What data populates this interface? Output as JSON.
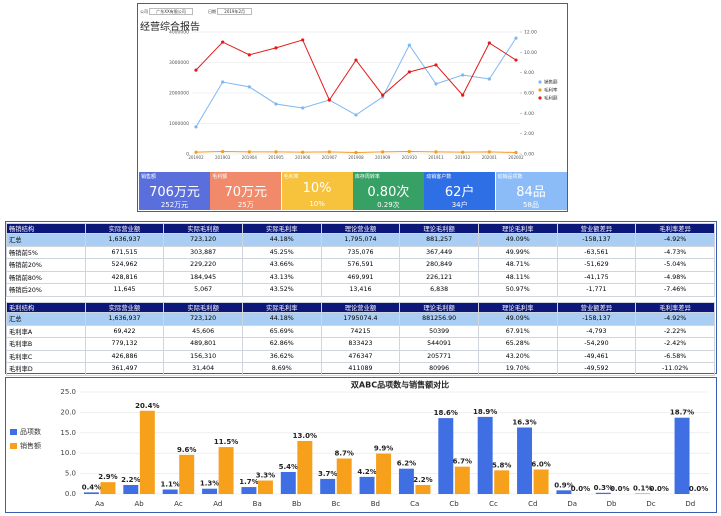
{
  "filters": {
    "company_label": "公司",
    "company": "广东XX有限公司",
    "date_label": "日期",
    "date": "2019年2月"
  },
  "report_title": "经营综合报告",
  "chart_data": [
    {
      "type": "line",
      "categories": [
        "201902",
        "201903",
        "201904",
        "201905",
        "201906",
        "201907",
        "201908",
        "201909",
        "201910",
        "201911",
        "201912",
        "202001",
        "202002"
      ],
      "series": [
        {
          "name": "销售额",
          "color": "#7fb8f0",
          "values": [
            890000,
            2360000,
            2200000,
            1640000,
            1510000,
            1770000,
            1280000,
            1870000,
            3570000,
            2300000,
            2590000,
            2460000,
            3800000
          ]
        },
        {
          "name": "毛利率",
          "color": "#f39a1e",
          "values": [
            60000,
            80000,
            70000,
            70000,
            60000,
            70000,
            50000,
            70000,
            80000,
            70000,
            60000,
            70000,
            50000
          ]
        },
        {
          "name": "毛利额",
          "color": "#e41a1a",
          "values": [
            2750000,
            3670000,
            3250000,
            3480000,
            3740000,
            1770000,
            3080000,
            1930000,
            2690000,
            2920000,
            1930000,
            3640000,
            3080000
          ]
        }
      ],
      "ylim": [
        0,
        4000000
      ],
      "yticks": [
        0,
        1000000,
        2000000,
        3000000,
        4000000
      ],
      "y2lim": [
        0,
        12
      ],
      "y2ticks": [
        {
          "value": 0,
          "label": "0.00"
        },
        {
          "value": 2,
          "label": "2.00"
        },
        {
          "value": 4,
          "label": "4.00"
        },
        {
          "value": 6,
          "label": "6.00"
        },
        {
          "value": 8,
          "label": "8.00"
        },
        {
          "value": 10,
          "label": "10.00"
        },
        {
          "value": 12,
          "label": "12.00"
        }
      ],
      "grid": true,
      "legend": "right"
    },
    {
      "type": "bar",
      "title": "双ABC品项数与销售额对比",
      "categories": [
        "Aa",
        "Ab",
        "Ac",
        "Ad",
        "Ba",
        "Bb",
        "Bc",
        "Bd",
        "Ca",
        "Cb",
        "Cc",
        "Cd",
        "Da",
        "Db",
        "Dc",
        "Dd"
      ],
      "series": [
        {
          "name": "品项数",
          "color": "#3f6fe3",
          "values": [
            0.4,
            2.2,
            1.1,
            1.3,
            1.7,
            5.4,
            3.7,
            4.2,
            6.2,
            18.6,
            18.9,
            16.3,
            0.9,
            0.3,
            0.1,
            18.7
          ],
          "value_labels": [
            "0.4%",
            "2.2%",
            "1.1%",
            "1.3%",
            "1.7%",
            "5.4%",
            "3.7%",
            "4.2%",
            "6.2%",
            "18.6%",
            "18.9%",
            "16.3%",
            "0.9%",
            "0.3%",
            "0.1%",
            "18.7%"
          ]
        },
        {
          "name": "销售额",
          "color": "#f6a01b",
          "values": [
            2.9,
            20.4,
            9.6,
            11.5,
            3.3,
            13.0,
            8.7,
            9.9,
            2.2,
            6.7,
            5.8,
            6.0,
            0.0,
            0.0,
            0.0,
            0.0
          ],
          "value_labels": [
            "2.9%",
            "20.4%",
            "9.6%",
            "11.5%",
            "3.3%",
            "13.0%",
            "8.7%",
            "9.9%",
            "2.2%",
            "6.7%",
            "5.8%",
            "6.0%",
            "0.0%",
            "0.0%",
            "0.0%",
            "0.0%"
          ]
        }
      ],
      "ylim": [
        0,
        25
      ],
      "yticks": [
        {
          "value": 0,
          "label": "0.0"
        },
        {
          "value": 5,
          "label": "5.0"
        },
        {
          "value": 10,
          "label": "10.0"
        },
        {
          "value": 15,
          "label": "15.0"
        },
        {
          "value": 20,
          "label": "20.0"
        },
        {
          "value": 25,
          "label": "25.0"
        }
      ],
      "grid": true,
      "legend": "left"
    }
  ],
  "kpis": [
    {
      "label": "销售额",
      "value": "706万元",
      "sub": "252万元",
      "color": "#5b6fdc"
    },
    {
      "label": "毛利额",
      "value": "70万元",
      "sub": "25万",
      "color": "#f08a6a"
    },
    {
      "label": "毛利率",
      "value": "10%",
      "sub": "10%",
      "color": "#f7c23c"
    },
    {
      "label": "库存周转率",
      "value": "0.80次",
      "sub": "0.29次",
      "color": "#36a065"
    },
    {
      "label": "动销客户数",
      "value": "62户",
      "sub": "34户",
      "color": "#2f6fe6"
    },
    {
      "label": "动销品项数",
      "value": "84品",
      "sub": "58品",
      "color": "#8cbcf8"
    }
  ],
  "tables": [
    {
      "header": [
        "畅销结构",
        "实际营业额",
        "实际毛利额",
        "实际毛利率",
        "理论营业额",
        "理论毛利额",
        "理论毛利率",
        "营业额差异",
        "毛利率差异"
      ],
      "rows": [
        [
          "汇总",
          "1,636,937",
          "723,120",
          "44.18%",
          "1,795,074",
          "881,257",
          "49.09%",
          "-158,137",
          "-4.92%"
        ],
        [
          "畅销前5%",
          "671,515",
          "303,887",
          "45.25%",
          "735,076",
          "367,449",
          "49.99%",
          "-63,561",
          "-4.73%"
        ],
        [
          "畅销前20%",
          "524,962",
          "229,220",
          "43.66%",
          "576,591",
          "280,849",
          "48.71%",
          "-51,629",
          "-5.04%"
        ],
        [
          "畅销前80%",
          "428,816",
          "184,945",
          "43.13%",
          "469,991",
          "226,121",
          "48.11%",
          "-41,175",
          "-4.98%"
        ],
        [
          "畅销后20%",
          "11,645",
          "5,067",
          "43.52%",
          "13,416",
          "6,838",
          "50.97%",
          "-1,771",
          "-7.46%"
        ]
      ]
    },
    {
      "header": [
        "毛利结构",
        "实际营业额",
        "实际毛利额",
        "实际毛利率",
        "理论营业额",
        "理论毛利额",
        "理论毛利率",
        "营业额差异",
        "毛利率差异"
      ],
      "rows": [
        [
          "汇总",
          "1,636,937",
          "723,120",
          "44.18%",
          "1795074.4",
          "881256.90",
          "49.09%",
          "-158,137",
          "-4.92%"
        ],
        [
          "毛利率A",
          "69,422",
          "45,606",
          "65.69%",
          "74215",
          "50399",
          "67.91%",
          "-4,793",
          "-2.22%"
        ],
        [
          "毛利率B",
          "779,132",
          "489,801",
          "62.86%",
          "833423",
          "544091",
          "65.28%",
          "-54,290",
          "-2.42%"
        ],
        [
          "毛利率C",
          "426,886",
          "156,310",
          "36.62%",
          "476347",
          "205771",
          "43.20%",
          "-49,461",
          "-6.58%"
        ],
        [
          "毛利率D",
          "361,497",
          "31,404",
          "8.69%",
          "411089",
          "80996",
          "19.70%",
          "-49,592",
          "-11.02%"
        ]
      ]
    }
  ]
}
